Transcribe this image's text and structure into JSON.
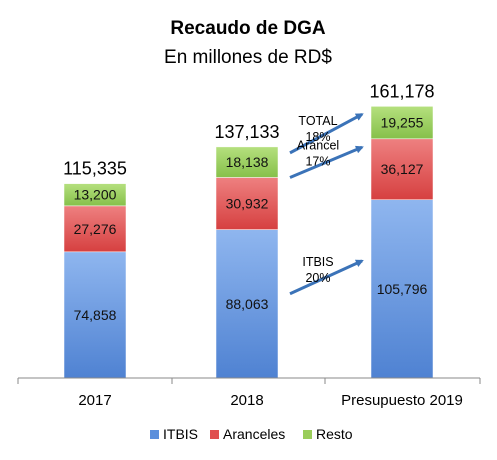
{
  "chart_data": {
    "type": "bar",
    "stacked": true,
    "title": "Recaudo de DGA",
    "subtitle": "En millones de RD$",
    "categories": [
      "2017",
      "2018",
      "Presupuesto 2019"
    ],
    "series": [
      {
        "name": "ITBIS",
        "values": [
          74858,
          88063,
          105796
        ],
        "labels": [
          "74,858",
          "88,063",
          "105,796"
        ],
        "color": "#5b8fdc"
      },
      {
        "name": "Aranceles",
        "values": [
          27276,
          30932,
          36127
        ],
        "labels": [
          "27,276",
          "30,932",
          "36,127"
        ],
        "color": "#e05050"
      },
      {
        "name": "Resto",
        "values": [
          13200,
          18138,
          19255
        ],
        "labels": [
          "13,200",
          "18,138",
          "19,255"
        ],
        "color": "#9acd5a"
      }
    ],
    "totals": [
      115335,
      137133,
      161178
    ],
    "total_labels": [
      "115,335",
      "137,133",
      "161,178"
    ],
    "ylim": [
      0,
      178000
    ],
    "legend_position": "bottom",
    "grid": false,
    "annotations": [
      {
        "line1": "TOTAL",
        "line2": "18%",
        "target": "Total"
      },
      {
        "line1": "Arancel",
        "line2": "17%",
        "target": "Aranceles"
      },
      {
        "line1": "ITBIS",
        "line2": "20%",
        "target": "ITBIS"
      }
    ],
    "arrow_color": "#3b73b8"
  }
}
